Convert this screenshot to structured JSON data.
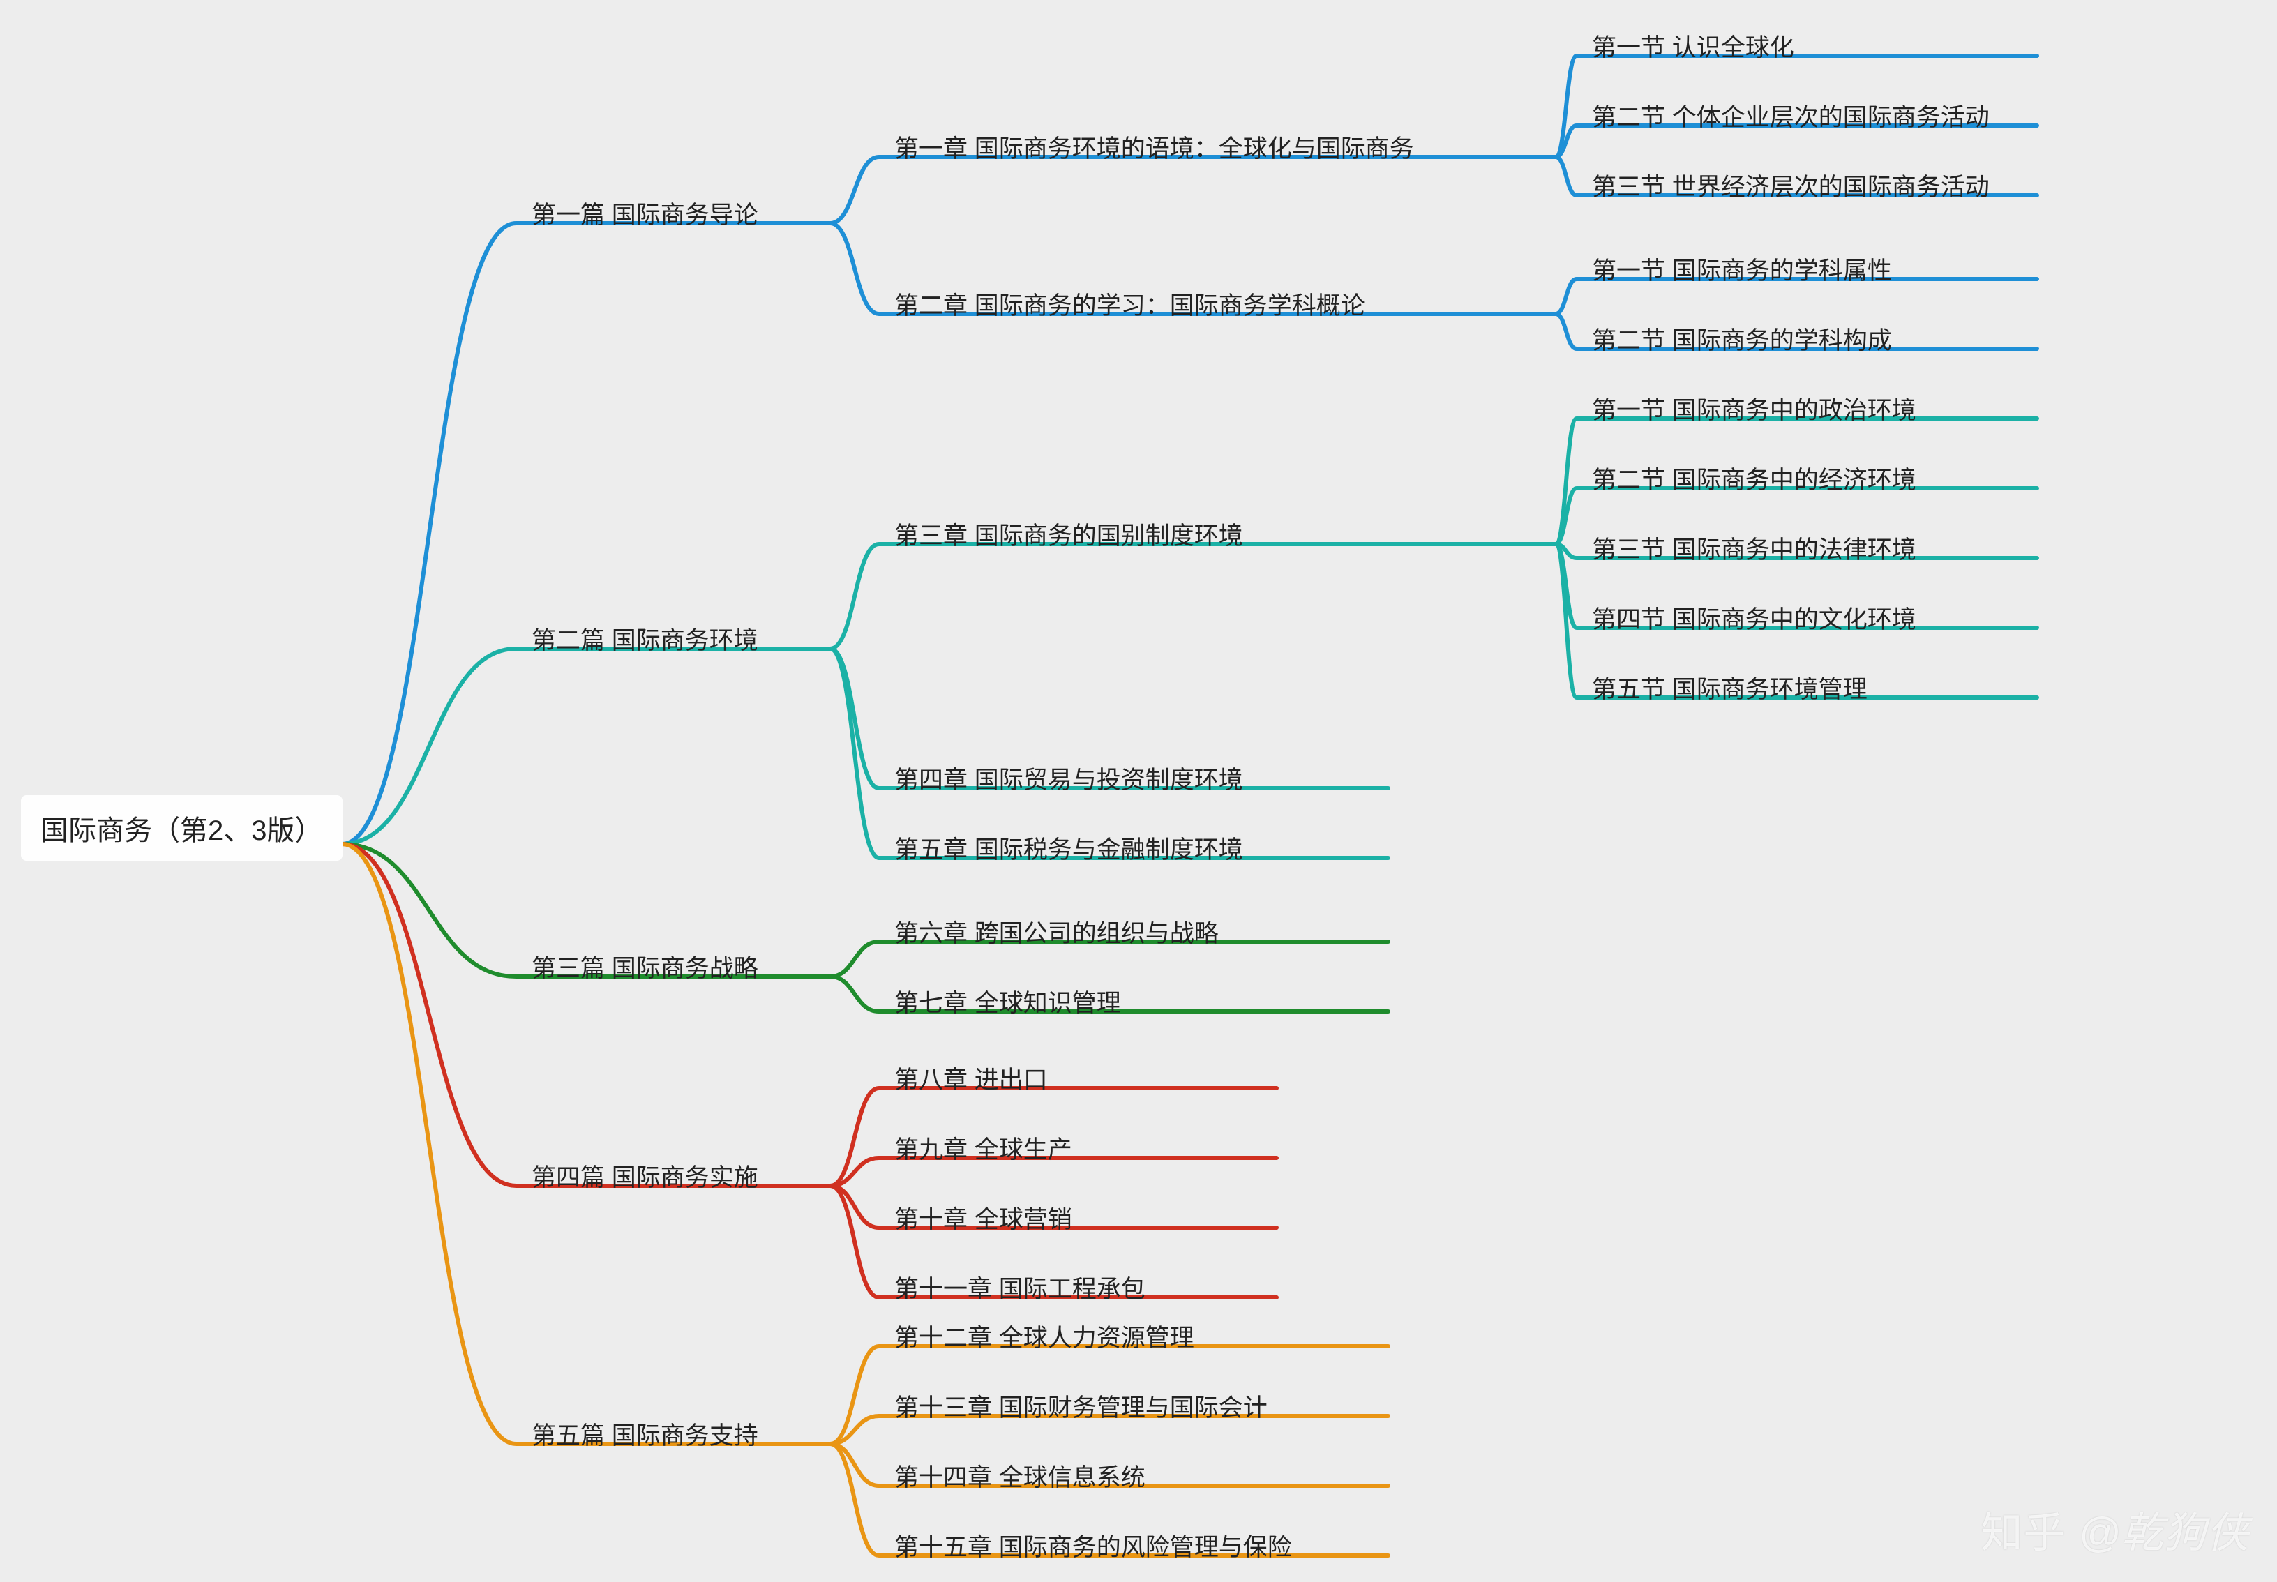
{
  "background_color": "#ededed",
  "stroke_width": 6,
  "font_size_root": 40,
  "font_size_node": 35,
  "root": {
    "label": "国际商务（第2、3版）",
    "bg": "#fefefe"
  },
  "branches": [
    {
      "id": "p1",
      "color": "#1e8fd6",
      "label": "第一篇  国际商务导论",
      "children": [
        {
          "id": "c1",
          "label": "第一章  国际商务环境的语境：全球化与国际商务",
          "children": [
            {
              "label": "第一节  认识全球化"
            },
            {
              "label": "第二节  个体企业层次的国际商务活动"
            },
            {
              "label": "第三节  世界经济层次的国际商务活动"
            }
          ]
        },
        {
          "id": "c2",
          "label": "第二章  国际商务的学习：国际商务学科概论",
          "children": [
            {
              "label": "第一节  国际商务的学科属性"
            },
            {
              "label": "第二节  国际商务的学科构成"
            }
          ]
        }
      ]
    },
    {
      "id": "p2",
      "color": "#1bb1a6",
      "label": "第二篇  国际商务环境",
      "children": [
        {
          "id": "c3",
          "label": "第三章  国际商务的国别制度环境",
          "children": [
            {
              "label": "第一节  国际商务中的政治环境"
            },
            {
              "label": "第二节  国际商务中的经济环境"
            },
            {
              "label": "第三节  国际商务中的法律环境"
            },
            {
              "label": "第四节  国际商务中的文化环境"
            },
            {
              "label": "第五节  国际商务环境管理"
            }
          ]
        },
        {
          "id": "c4",
          "label": "第四章  国际贸易与投资制度环境"
        },
        {
          "id": "c5",
          "label": "第五章  国际税务与金融制度环境"
        }
      ]
    },
    {
      "id": "p3",
      "color": "#1f8c2d",
      "label": "第三篇  国际商务战略",
      "children": [
        {
          "id": "c6",
          "label": "第六章  跨国公司的组织与战略"
        },
        {
          "id": "c7",
          "label": "第七章  全球知识管理"
        }
      ]
    },
    {
      "id": "p4",
      "color": "#d03020",
      "label": "第四篇  国际商务实施",
      "children": [
        {
          "id": "c8",
          "label": "第八章  进出口"
        },
        {
          "id": "c9",
          "label": "第九章  全球生产"
        },
        {
          "id": "c10",
          "label": "第十章  全球营销"
        },
        {
          "id": "c11",
          "label": "第十一章  国际工程承包"
        }
      ]
    },
    {
      "id": "p5",
      "color": "#e99514",
      "label": "第五篇  国际商务支持",
      "children": [
        {
          "id": "c12",
          "label": "第十二章  全球人力资源管理"
        },
        {
          "id": "c13",
          "label": "第十三章  国际财务管理与国际会计"
        },
        {
          "id": "c14",
          "label": "第十四章  全球信息系统"
        },
        {
          "id": "c15",
          "label": "第十五章  国际商务的风险管理与保险"
        }
      ]
    }
  ],
  "watermark": {
    "site": "知乎",
    "handle": "@乾狗侠"
  }
}
